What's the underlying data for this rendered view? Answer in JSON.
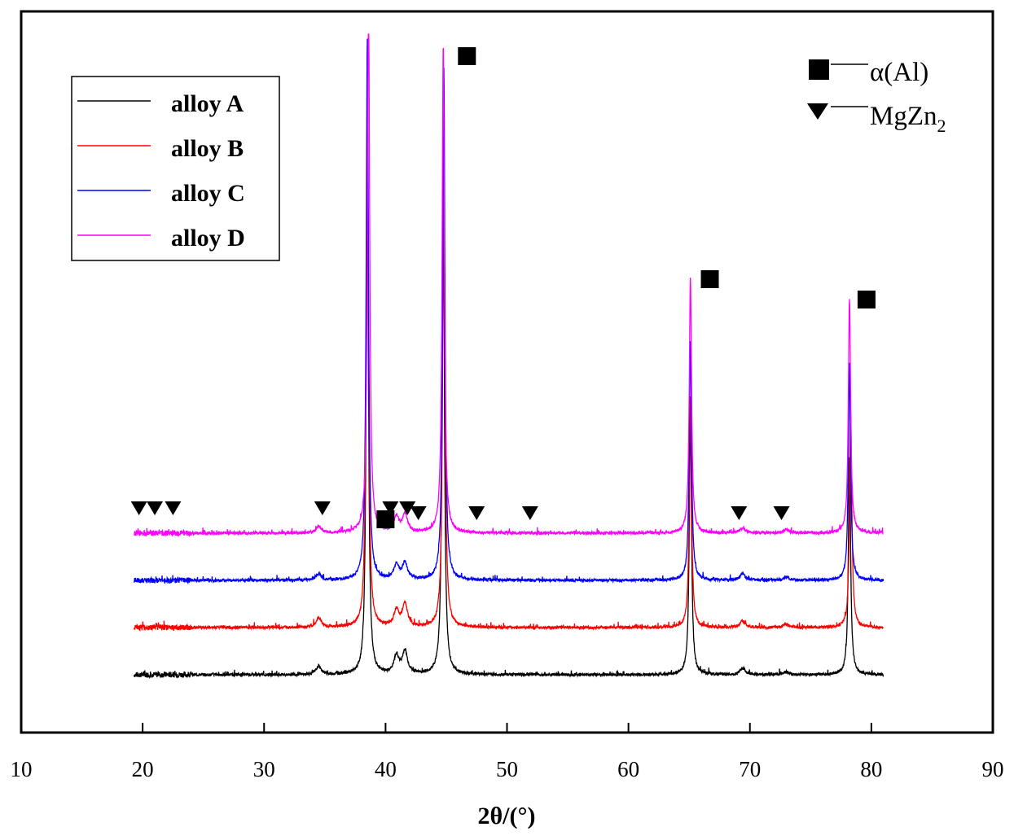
{
  "chart_data": {
    "type": "line",
    "title": "",
    "xlabel": "2θ/(°)",
    "ylabel": "",
    "xlim": [
      10,
      90
    ],
    "xticks": [
      10,
      20,
      30,
      40,
      50,
      60,
      70,
      80,
      90
    ],
    "y_ticks_shown": false,
    "scan_range": [
      19.3,
      81
    ],
    "legend_position": "top-left",
    "series": [
      {
        "name": "alloy A",
        "color": "#000000",
        "baseline": 0,
        "peaks": [
          {
            "two_theta": 38.5,
            "height": 645
          },
          {
            "two_theta": 44.75,
            "height": 633
          },
          {
            "two_theta": 65.1,
            "height": 318
          },
          {
            "two_theta": 78.2,
            "height": 268
          },
          {
            "two_theta": 40.9,
            "height": 22
          },
          {
            "two_theta": 41.6,
            "height": 28
          },
          {
            "two_theta": 34.5,
            "height": 10
          },
          {
            "two_theta": 69.4,
            "height": 8
          },
          {
            "two_theta": 73.0,
            "height": 4
          }
        ]
      },
      {
        "name": "alloy B",
        "color": "#ff0000",
        "baseline": 58,
        "peaks": [
          {
            "two_theta": 38.5,
            "height": 650
          },
          {
            "two_theta": 44.8,
            "height": 600
          },
          {
            "two_theta": 65.1,
            "height": 285
          },
          {
            "two_theta": 78.3,
            "height": 265
          },
          {
            "two_theta": 40.9,
            "height": 20
          },
          {
            "two_theta": 41.6,
            "height": 28
          },
          {
            "two_theta": 34.5,
            "height": 12
          },
          {
            "two_theta": 69.4,
            "height": 8
          },
          {
            "two_theta": 73.0,
            "height": 4
          }
        ]
      },
      {
        "name": "alloy C",
        "color": "#0000ff",
        "baseline": 116,
        "peaks": [
          {
            "two_theta": 38.5,
            "height": 665
          },
          {
            "two_theta": 44.8,
            "height": 630
          },
          {
            "two_theta": 65.1,
            "height": 295
          },
          {
            "two_theta": 78.2,
            "height": 265
          },
          {
            "two_theta": 40.9,
            "height": 18
          },
          {
            "two_theta": 41.6,
            "height": 20
          },
          {
            "two_theta": 34.5,
            "height": 8
          },
          {
            "two_theta": 69.4,
            "height": 8
          },
          {
            "two_theta": 73.0,
            "height": 4
          }
        ]
      },
      {
        "name": "alloy D",
        "color": "#ff00ff",
        "baseline": 174,
        "peaks": [
          {
            "two_theta": 38.6,
            "height": 660
          },
          {
            "two_theta": 44.75,
            "height": 600
          },
          {
            "two_theta": 65.1,
            "height": 313
          },
          {
            "two_theta": 78.2,
            "height": 288
          },
          {
            "two_theta": 40.9,
            "height": 18
          },
          {
            "two_theta": 41.6,
            "height": 22
          },
          {
            "two_theta": 34.5,
            "height": 8
          },
          {
            "two_theta": 69.4,
            "height": 6
          },
          {
            "two_theta": 73.0,
            "height": 4
          }
        ]
      }
    ],
    "phase_markers": {
      "alpha_Al": {
        "label": "α(Al)",
        "symbol": "square",
        "positions": [
          40.0,
          46.7,
          66.7,
          79.6
        ]
      },
      "MgZn2": {
        "label": "MgZn",
        "label_subscript": "2",
        "symbol": "down-triangle",
        "positions": [
          19.7,
          21.0,
          22.5,
          34.8,
          40.4,
          41.8,
          42.7,
          47.5,
          51.9,
          69.1,
          72.6
        ]
      }
    }
  }
}
